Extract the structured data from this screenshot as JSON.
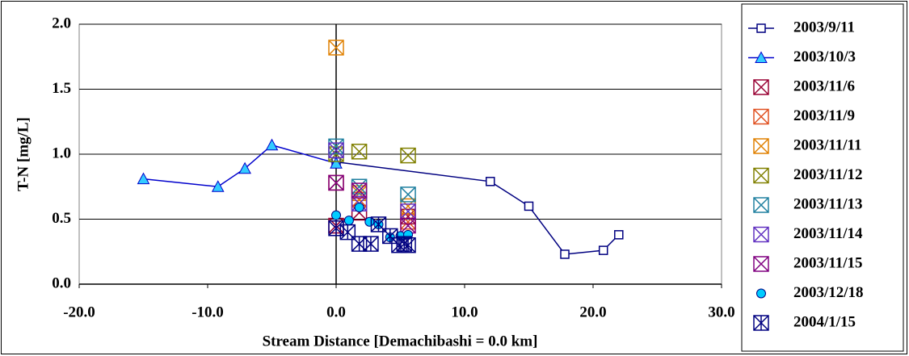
{
  "chart_data": {
    "type": "scatter",
    "x_label": "Stream Distance [Demachibashi = 0.0 km]",
    "y_label": "T-N [mg/L]",
    "xlim": [
      -20,
      30
    ],
    "xticks": [
      {
        "value": -20,
        "label": "-20.0"
      },
      {
        "value": -10,
        "label": "-10.0"
      },
      {
        "value": 0,
        "label": "0.0"
      },
      {
        "value": 10,
        "label": "10.0"
      },
      {
        "value": 20,
        "label": "20.0"
      },
      {
        "value": 30,
        "label": "30.0"
      }
    ],
    "negative_tick_color": "#ff0000",
    "ylim": [
      0,
      2
    ],
    "yticks": [
      {
        "value": 0,
        "label": "0.0"
      },
      0.5,
      {
        "value": 1,
        "label": "1.0"
      },
      1.5,
      {
        "value": 2,
        "label": "2.0"
      }
    ],
    "grid": true,
    "legend": "right",
    "series": [
      {
        "name": "2003/9/11",
        "color": "#000080",
        "marker": "square",
        "line": true,
        "x": [
          0,
          12,
          15,
          17.8,
          20.8,
          22
        ],
        "values": [
          0.94,
          0.79,
          0.6,
          0.23,
          0.26,
          0.38
        ]
      },
      {
        "name": "2003/10/3",
        "color": "#0000cc",
        "marker_fill": "#33ccff",
        "marker": "triangle",
        "line": true,
        "x": [
          -15,
          -9.2,
          -7.1,
          -5,
          0
        ],
        "values": [
          0.81,
          0.75,
          0.89,
          1.07,
          0.93
        ]
      },
      {
        "name": "2003/11/6",
        "color": "#990033",
        "marker": "x-box",
        "x": [
          0,
          1.8,
          5.6
        ],
        "values": [
          0.45,
          0.55,
          0.52
        ]
      },
      {
        "name": "2003/11/9",
        "color": "#e05020",
        "marker": "x-box",
        "x": [
          0,
          1.8,
          5.6
        ],
        "values": [
          0.78,
          0.65,
          0.48
        ]
      },
      {
        "name": "2003/11/11",
        "color": "#e08000",
        "marker": "x-box",
        "x": [
          0,
          1.8,
          5.6
        ],
        "values": [
          1.82,
          0.7,
          0.6
        ]
      },
      {
        "name": "2003/11/12",
        "color": "#808000",
        "marker": "x-box",
        "x": [
          0,
          1.8,
          5.6
        ],
        "values": [
          1.0,
          1.02,
          0.99
        ]
      },
      {
        "name": "2003/11/13",
        "color": "#2080a0",
        "marker": "x-box",
        "x": [
          0,
          1.8,
          5.6
        ],
        "values": [
          1.06,
          0.75,
          0.69
        ]
      },
      {
        "name": "2003/11/14",
        "color": "#6030c0",
        "marker": "x-box",
        "x": [
          0,
          1.8,
          5.6
        ],
        "values": [
          1.03,
          0.62,
          0.56
        ]
      },
      {
        "name": "2003/11/15",
        "color": "#800080",
        "marker": "x-box",
        "x": [
          0,
          1.8,
          5.6
        ],
        "values": [
          0.78,
          0.72,
          0.45
        ]
      },
      {
        "name": "2003/12/18",
        "color": "#000080",
        "marker_fill": "#00ccff",
        "marker": "circle",
        "x": [
          0,
          1.0,
          1.8,
          2.6,
          3.3,
          4.2,
          5.0,
          5.6
        ],
        "values": [
          0.53,
          0.49,
          0.59,
          0.48,
          0.46,
          0.36,
          0.37,
          0.38
        ]
      },
      {
        "name": "2004/1/15",
        "color": "#000080",
        "marker": "star-box",
        "x": [
          0,
          0.9,
          1.8,
          2.7,
          3.3,
          4.2,
          4.9,
          5.3,
          5.6
        ],
        "values": [
          0.43,
          0.4,
          0.31,
          0.31,
          0.46,
          0.37,
          0.3,
          0.31,
          0.3
        ]
      }
    ]
  }
}
